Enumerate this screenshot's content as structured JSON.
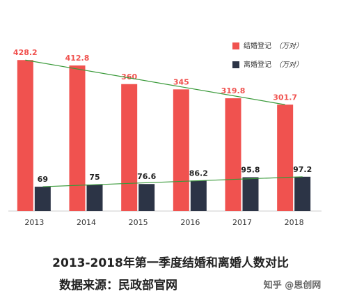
{
  "chart_data": {
    "type": "bar",
    "categories": [
      "2013",
      "2014",
      "2015",
      "2016",
      "2017",
      "2018"
    ],
    "series": [
      {
        "name": "结婚登记",
        "color": "#f0524f",
        "values": [
          428.2,
          412.8,
          360,
          345,
          319.8,
          301.7
        ]
      },
      {
        "name": "离婚登记",
        "color": "#2c3446",
        "values": [
          69,
          75,
          76.6,
          86.2,
          95.8,
          97.2
        ]
      }
    ],
    "legend_unit": "（万对）",
    "trend_color": "#3a9a3a",
    "ylim": [
      0,
      480
    ],
    "title": "2013-2018年第一季度结婚和离婚人数对比",
    "subtitle": "数据来源：民政部官网",
    "watermark": "知乎 @思创网"
  }
}
